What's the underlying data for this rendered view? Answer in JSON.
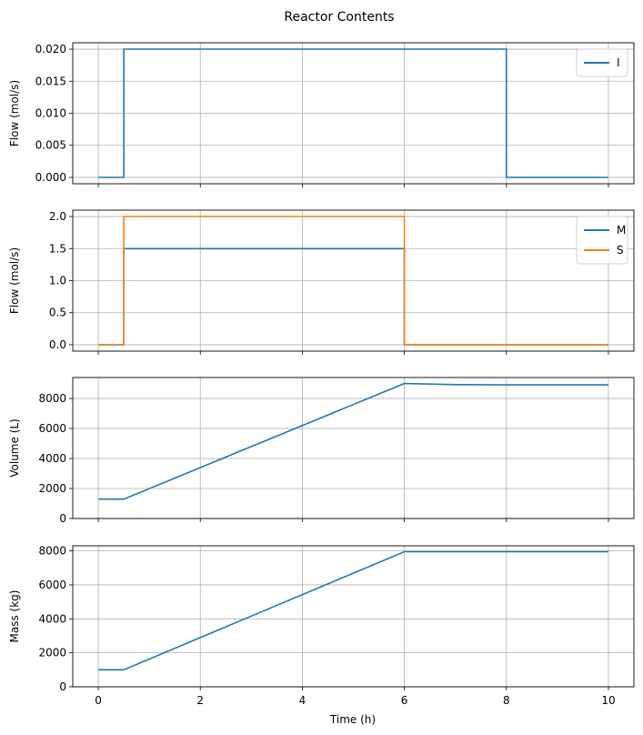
{
  "chart_data": {
    "type": "line",
    "title": "Reactor Contents",
    "xlabel": "Time (h)",
    "x_ticks": [
      0,
      2,
      4,
      6,
      8,
      10
    ],
    "xlim": [
      -0.5,
      10.5
    ],
    "grid": true,
    "subplots": [
      {
        "ylabel": "Flow (mol/s)",
        "ylim": [
          -0.001,
          0.021
        ],
        "y_ticks": [
          "0.000",
          "0.005",
          "0.010",
          "0.015",
          "0.020"
        ],
        "y_tick_values": [
          0,
          0.005,
          0.01,
          0.015,
          0.02
        ],
        "legend_position": "upper right",
        "series": [
          {
            "name": "I",
            "color": "#1f77b4",
            "step": true,
            "x": [
              0,
              0.5,
              0.5,
              8,
              8,
              10
            ],
            "y": [
              0,
              0,
              0.02,
              0.02,
              0,
              0
            ]
          }
        ]
      },
      {
        "ylabel": "Flow (mol/s)",
        "ylim": [
          -0.1,
          2.1
        ],
        "y_ticks": [
          "0.0",
          "0.5",
          "1.0",
          "1.5",
          "2.0"
        ],
        "y_tick_values": [
          0,
          0.5,
          1.0,
          1.5,
          2.0
        ],
        "legend_position": "upper right",
        "series": [
          {
            "name": "M",
            "color": "#1f77b4",
            "step": true,
            "x": [
              0,
              0.5,
              0.5,
              6,
              6,
              10
            ],
            "y": [
              0,
              0,
              1.5,
              1.5,
              0,
              0
            ]
          },
          {
            "name": "S",
            "color": "#ff7f0e",
            "step": true,
            "x": [
              0,
              0.5,
              0.5,
              6,
              6,
              10
            ],
            "y": [
              0,
              0,
              2.0,
              2.0,
              0,
              0
            ]
          }
        ]
      },
      {
        "ylabel": "Volume (L)",
        "ylim": [
          0,
          9400
        ],
        "y_ticks": [
          "0",
          "2000",
          "4000",
          "6000",
          "8000"
        ],
        "y_tick_values": [
          0,
          2000,
          4000,
          6000,
          8000
        ],
        "series": [
          {
            "name": "Volume",
            "color": "#1f77b4",
            "x": [
              0,
              0.5,
              6,
              7,
              8,
              10
            ],
            "y": [
              1290,
              1290,
              9000,
              8930,
              8910,
              8910
            ]
          }
        ]
      },
      {
        "ylabel": "Mass (kg)",
        "ylim": [
          0,
          8300
        ],
        "y_ticks": [
          "0",
          "2000",
          "4000",
          "6000",
          "8000"
        ],
        "y_tick_values": [
          0,
          2000,
          4000,
          6000,
          8000
        ],
        "series": [
          {
            "name": "Mass",
            "color": "#1f77b4",
            "x": [
              0,
              0.5,
              6,
              10
            ],
            "y": [
              1000,
              1000,
              7950,
              7950
            ]
          }
        ]
      }
    ]
  }
}
